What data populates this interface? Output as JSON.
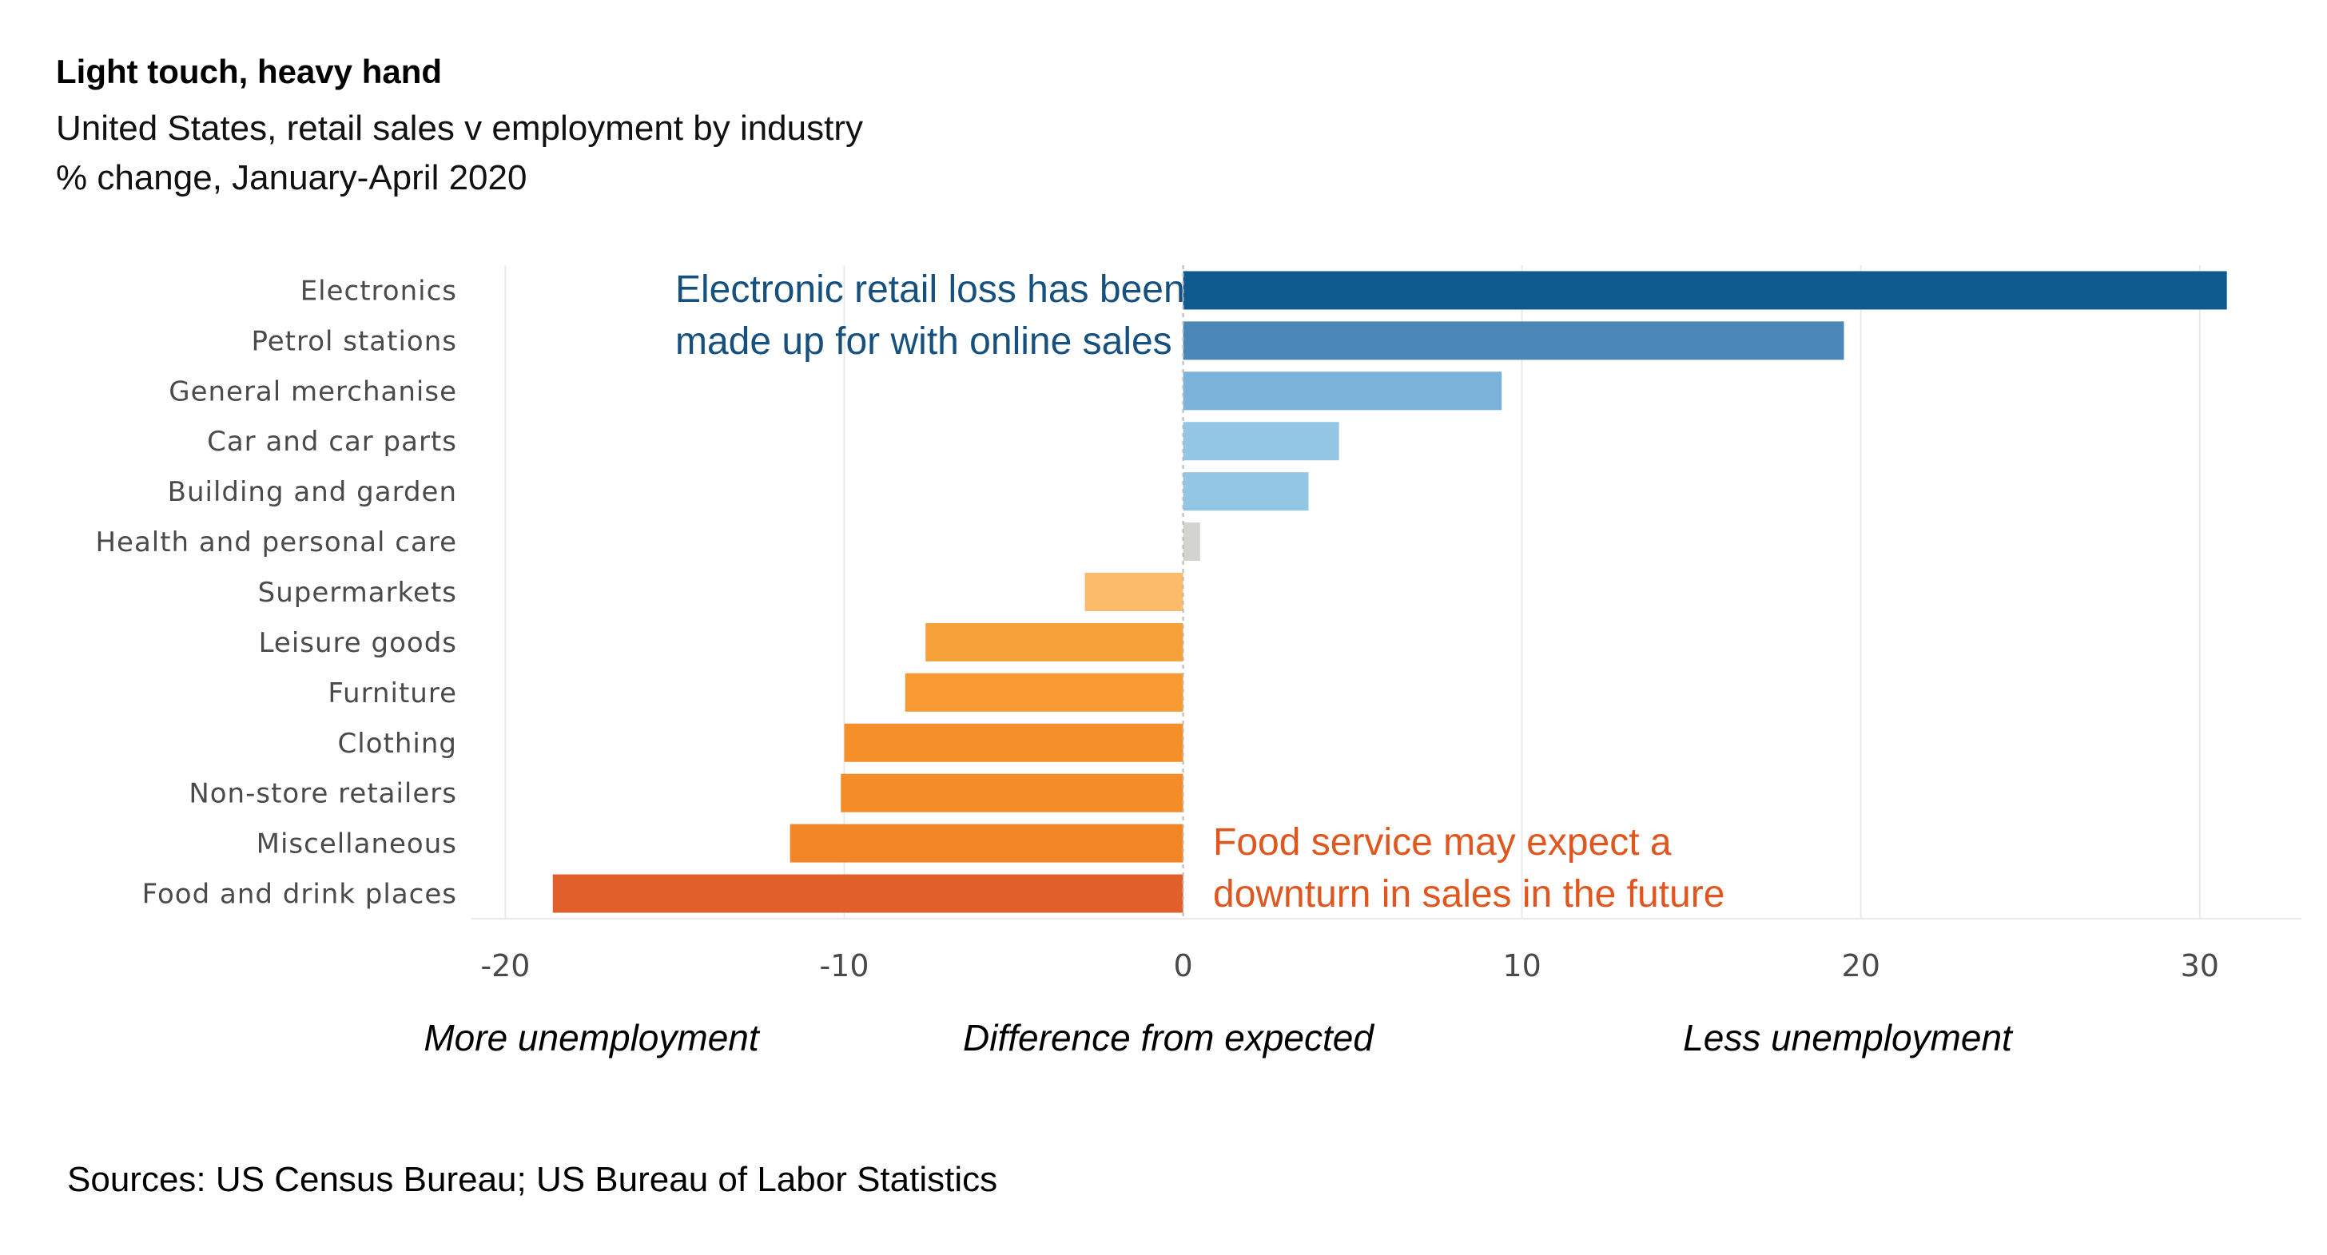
{
  "header": {
    "title": "Light touch, heavy hand",
    "subtitle_line1": "United States, retail sales v employment by industry",
    "subtitle_line2": "% change, January-April 2020"
  },
  "footer": {
    "source": "Sources: US Census Bureau; US Bureau of Labor Statistics"
  },
  "colors": {
    "grid": "#e9e9e9",
    "zero_line": "#b8b8b8",
    "annotation_blue": "#15507f",
    "annotation_orange": "#e0561f"
  },
  "chart_data": {
    "type": "bar",
    "orientation": "horizontal",
    "title": "Light touch, heavy hand",
    "subtitle": "United States, retail sales v employment by industry — % change, January-April 2020",
    "categories": [
      "Electronics",
      "Petrol stations",
      "General merchanise",
      "Car and car parts",
      "Building and garden",
      "Health and personal care",
      "Supermarkets",
      "Leisure goods",
      "Furniture",
      "Clothing",
      "Non-store retailers",
      "Miscellaneous",
      "Food and drink places"
    ],
    "values": [
      30.8,
      19.5,
      9.4,
      4.6,
      3.7,
      0.5,
      -2.9,
      -7.6,
      -8.2,
      -10.0,
      -10.1,
      -11.6,
      -18.6
    ],
    "bar_colors": [
      "#0f5a8f",
      "#4a86b6",
      "#7bb2da",
      "#93c5e4",
      "#93c5e4",
      "#d3d3cf",
      "#fbbb6a",
      "#f7a13a",
      "#f69a31",
      "#f58f29",
      "#f48c27",
      "#f28627",
      "#e05f2b"
    ],
    "xlim": [
      -21,
      33
    ],
    "xticks": [
      -20,
      -10,
      0,
      10,
      20,
      30
    ],
    "xtick_labels": [
      "-20",
      "-10",
      "0",
      "10",
      "20",
      "30"
    ],
    "grid": true,
    "axis_notes": {
      "left": "More unemployment",
      "center": "Difference from expected",
      "right": "Less unemployment"
    },
    "annotations": [
      {
        "id": "electronics",
        "lines": [
          "Electronic retail loss has been",
          "made up for with online sales"
        ],
        "color": "#15507f"
      },
      {
        "id": "food",
        "lines": [
          "Food service may expect a",
          "downturn in sales in the future"
        ],
        "color": "#e0561f"
      }
    ]
  }
}
